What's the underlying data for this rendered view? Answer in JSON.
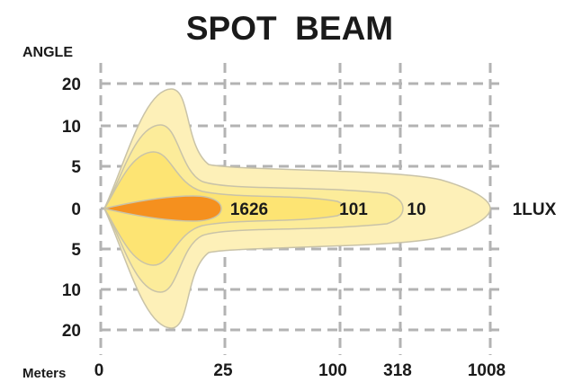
{
  "chart_data": {
    "type": "area",
    "title": "SPOT  BEAM",
    "ylabel": "ANGLE",
    "xlabel": "Meters",
    "x_ticks": [
      "0",
      "25",
      "100",
      "318",
      "1008"
    ],
    "y_ticks_upper": [
      "20",
      "10",
      "5"
    ],
    "y_tick_center": "0",
    "y_ticks_lower": [
      "5",
      "10",
      "20"
    ],
    "grid": true,
    "series": [
      {
        "name": "1LUX",
        "lux": 1,
        "reach_m": 1008,
        "color": "#fdf0b8"
      },
      {
        "name": "10",
        "lux": 10,
        "reach_m": 318,
        "color": "#fcec9a"
      },
      {
        "name": "101",
        "lux": 101,
        "reach_m": 100,
        "color": "#fde473"
      },
      {
        "name": "1626",
        "lux": 1626,
        "reach_m": 25,
        "color": "#f5901e"
      }
    ],
    "colors": {
      "grid": "#b3b3b3",
      "outline": "#c9c3a8",
      "text": "#1a1a1a"
    }
  }
}
